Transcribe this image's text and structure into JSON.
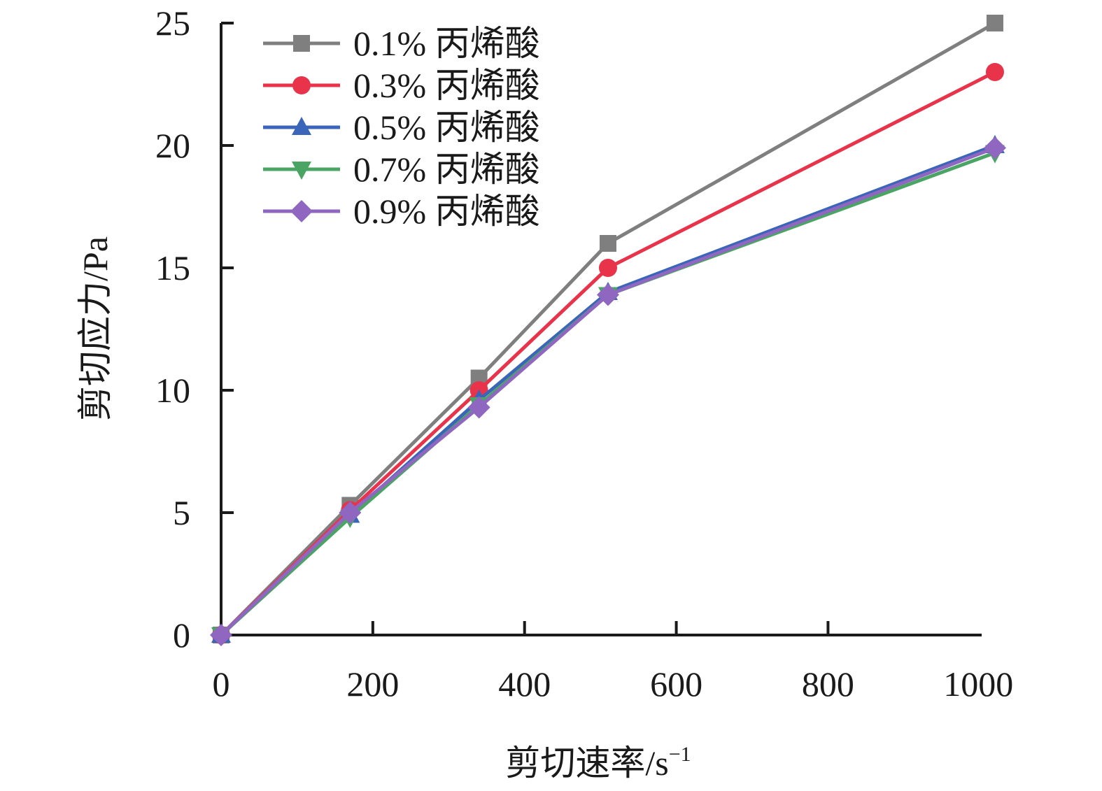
{
  "chart_data": {
    "type": "line",
    "title": "",
    "xlabel": "剪切速率/s",
    "xlabel_superscript": "−1",
    "ylabel": "剪切应力/Pa",
    "xlim": [
      0,
      1000
    ],
    "ylim": [
      0,
      25
    ],
    "xticks": [
      "0",
      "200",
      "400",
      "600",
      "800",
      "1000"
    ],
    "yticks": [
      "0",
      "5",
      "10",
      "15",
      "20",
      "25"
    ],
    "x": [
      0,
      170,
      340,
      510,
      1020
    ],
    "legend_position": "top-left",
    "grid": false,
    "series": [
      {
        "name": "0.1% 丙烯酸",
        "color": "#7f7f7f",
        "marker": "square",
        "values": [
          0,
          5.3,
          10.5,
          16.0,
          25.0
        ]
      },
      {
        "name": "0.3% 丙烯酸",
        "color": "#e8334a",
        "marker": "circle",
        "values": [
          0,
          5.1,
          10.0,
          15.0,
          23.0
        ]
      },
      {
        "name": "0.5% 丙烯酸",
        "color": "#3b65b8",
        "marker": "triangle",
        "values": [
          0,
          4.9,
          9.6,
          14.0,
          20.0
        ]
      },
      {
        "name": "0.7% 丙烯酸",
        "color": "#4aa564",
        "marker": "triangle-down",
        "values": [
          0,
          4.8,
          9.4,
          13.9,
          19.7
        ]
      },
      {
        "name": "0.9% 丙烯酸",
        "color": "#8f67c1",
        "marker": "diamond",
        "values": [
          0,
          5.0,
          9.3,
          13.9,
          19.9
        ]
      }
    ]
  }
}
